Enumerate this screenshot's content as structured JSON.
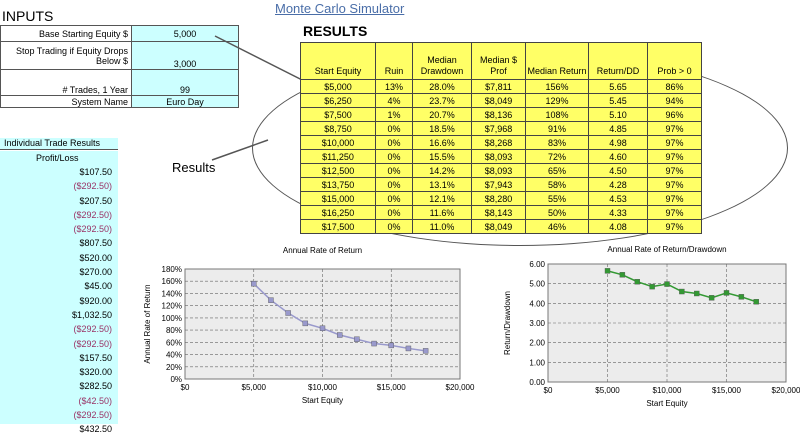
{
  "title": "Monte Carlo Simulator",
  "inputs": {
    "heading": "INPUTS",
    "rows": [
      {
        "label": "Base Starting Equity $",
        "value": "5,000"
      },
      {
        "label": "Stop Trading if Equity Drops Below $",
        "value": "3,000"
      },
      {
        "label": "# Trades, 1 Year",
        "value": "99"
      },
      {
        "label": "System Name",
        "value": "Euro Day"
      }
    ]
  },
  "results": {
    "heading": "RESULTS",
    "callout": "Results",
    "columns": [
      "Start Equity",
      "Ruin",
      "Median Drawdown",
      "Median $ Prof",
      "Median Return",
      "Return/DD",
      "Prob > 0"
    ],
    "rows": [
      [
        "$5,000",
        "13%",
        "28.0%",
        "$7,811",
        "156%",
        "5.65",
        "86%"
      ],
      [
        "$6,250",
        "4%",
        "23.7%",
        "$8,049",
        "129%",
        "5.45",
        "94%"
      ],
      [
        "$7,500",
        "1%",
        "20.7%",
        "$8,136",
        "108%",
        "5.10",
        "96%"
      ],
      [
        "$8,750",
        "0%",
        "18.5%",
        "$7,968",
        "91%",
        "4.85",
        "97%"
      ],
      [
        "$10,000",
        "0%",
        "16.6%",
        "$8,268",
        "83%",
        "4.98",
        "97%"
      ],
      [
        "$11,250",
        "0%",
        "15.5%",
        "$8,093",
        "72%",
        "4.60",
        "97%"
      ],
      [
        "$12,500",
        "0%",
        "14.2%",
        "$8,093",
        "65%",
        "4.50",
        "97%"
      ],
      [
        "$13,750",
        "0%",
        "13.1%",
        "$7,943",
        "58%",
        "4.28",
        "97%"
      ],
      [
        "$15,000",
        "0%",
        "12.1%",
        "$8,280",
        "55%",
        "4.53",
        "97%"
      ],
      [
        "$16,250",
        "0%",
        "11.6%",
        "$8,143",
        "50%",
        "4.33",
        "97%"
      ],
      [
        "$17,500",
        "0%",
        "11.0%",
        "$8,049",
        "46%",
        "4.08",
        "97%"
      ]
    ]
  },
  "trades": {
    "heading": "Individual Trade Results",
    "subheading": "Profit/Loss",
    "values": [
      "$107.50",
      "($292.50)",
      "$207.50",
      "($292.50)",
      "($292.50)",
      "$807.50",
      "$520.00",
      "$270.00",
      "$45.00",
      "$920.00",
      "$1,032.50",
      "($292.50)",
      "($292.50)",
      "$157.50",
      "$320.00",
      "$282.50",
      "($42.50)",
      "($292.50)",
      "$432.50"
    ]
  },
  "chart_data": [
    {
      "type": "line",
      "title": "Annual Rate of Return",
      "xlabel": "Start Equity",
      "ylabel": "Annual Rate of Return",
      "x": [
        5000,
        6250,
        7500,
        8750,
        10000,
        11250,
        12500,
        13750,
        15000,
        16250,
        17500
      ],
      "y": [
        156,
        129,
        108,
        91,
        83,
        72,
        65,
        58,
        55,
        50,
        46
      ],
      "xlim": [
        0,
        20000
      ],
      "ylim": [
        0,
        180
      ],
      "xticks": [
        "$0",
        "$5,000",
        "$10,000",
        "$15,000",
        "$20,000"
      ],
      "yticks": [
        "0%",
        "20%",
        "40%",
        "60%",
        "80%",
        "100%",
        "120%",
        "140%",
        "160%",
        "180%"
      ],
      "color": "#9999cc",
      "marker": "square",
      "grid": true
    },
    {
      "type": "line",
      "title": "Annual Rate of Return/Drawdown",
      "xlabel": "Start Equity",
      "ylabel": "Return/Drawdown",
      "x": [
        5000,
        6250,
        7500,
        8750,
        10000,
        11250,
        12500,
        13750,
        15000,
        16250,
        17500
      ],
      "y": [
        5.65,
        5.45,
        5.1,
        4.85,
        4.98,
        4.6,
        4.5,
        4.28,
        4.53,
        4.33,
        4.08
      ],
      "xlim": [
        0,
        20000
      ],
      "ylim": [
        0,
        6
      ],
      "xticks": [
        "$0",
        "$5,000",
        "$10,000",
        "$15,000",
        "$20,000"
      ],
      "yticks": [
        "0.00",
        "1.00",
        "2.00",
        "3.00",
        "4.00",
        "5.00",
        "6.00"
      ],
      "color": "#339933",
      "marker": "square",
      "grid": true
    }
  ]
}
